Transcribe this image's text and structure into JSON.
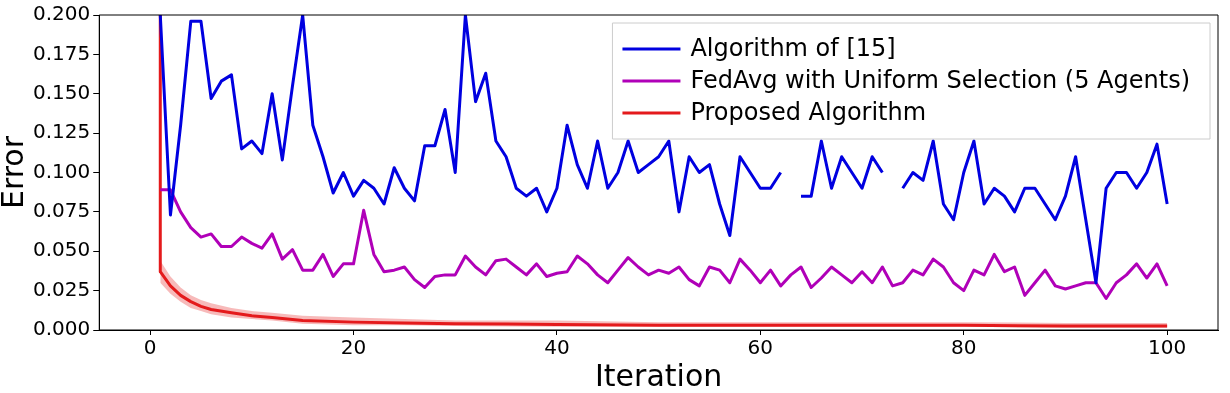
{
  "chart_data": {
    "type": "line",
    "xlabel": "Iteration",
    "ylabel": "Error",
    "xlim": [
      -5,
      105
    ],
    "xticks": [
      0,
      20,
      40,
      60,
      80,
      100
    ],
    "ylim": [
      0,
      0.2
    ],
    "yticks": [
      {
        "value": 0,
        "label": "0.000"
      },
      {
        "value": 0.025,
        "label": "0.025"
      },
      {
        "value": 0.05,
        "label": "0.050"
      },
      {
        "value": 0.075,
        "label": "0.075"
      },
      {
        "value": 0.1,
        "label": "0.100"
      },
      {
        "value": 0.125,
        "label": "0.125"
      },
      {
        "value": 0.15,
        "label": "0.150"
      },
      {
        "value": 0.175,
        "label": "0.175"
      },
      {
        "value": 0.2,
        "label": "0.200"
      }
    ],
    "legend": "top right",
    "grid": false,
    "marker": "none",
    "line_style": "solid",
    "series": [
      {
        "name": "Algorithm of [15]",
        "color": "#0000e0",
        "x": [
          1,
          2,
          3,
          4,
          5,
          6,
          7,
          8,
          9,
          10,
          11,
          12,
          13,
          14,
          15,
          16,
          17,
          18,
          19,
          20,
          21,
          22,
          23,
          24,
          25,
          26,
          27,
          28,
          29,
          30,
          31,
          32,
          33,
          34,
          35,
          36,
          37,
          38,
          39,
          40,
          41,
          42,
          43,
          44,
          45,
          46,
          47,
          48,
          49,
          50,
          51,
          52,
          53,
          54,
          55,
          56,
          57,
          58,
          59,
          60,
          61,
          62,
          63,
          64,
          65,
          66,
          67,
          68,
          69,
          70,
          71,
          72,
          73,
          74,
          75,
          76,
          77,
          78,
          79,
          80,
          81,
          82,
          83,
          84,
          85,
          86,
          87,
          88,
          89,
          90,
          91,
          92,
          93,
          94,
          95,
          96,
          97,
          98,
          99,
          100
        ],
        "values": [
          0.2,
          0.073,
          0.13,
          0.196,
          0.196,
          0.147,
          0.158,
          0.162,
          0.115,
          0.12,
          0.112,
          0.15,
          0.108,
          0.155,
          0.2,
          0.13,
          0.11,
          0.087,
          0.1,
          0.085,
          0.095,
          0.09,
          0.08,
          0.103,
          0.09,
          0.082,
          0.117,
          0.117,
          0.14,
          0.1,
          0.2,
          0.145,
          0.163,
          0.12,
          0.11,
          0.09,
          0.085,
          0.09,
          0.075,
          0.09,
          0.13,
          0.105,
          0.09,
          0.12,
          0.09,
          0.1,
          0.12,
          0.1,
          0.105,
          0.11,
          0.12,
          0.075,
          0.11,
          0.1,
          0.105,
          0.08,
          0.06,
          0.11,
          0.1,
          0.09,
          0.09,
          0.1,
          null,
          0.085,
          0.085,
          0.12,
          0.09,
          0.11,
          0.1,
          0.09,
          0.11,
          0.1,
          null,
          0.09,
          0.1,
          0.095,
          0.12,
          0.08,
          0.07,
          0.1,
          0.12,
          0.08,
          0.09,
          0.085,
          0.075,
          0.09,
          0.09,
          0.08,
          0.07,
          0.085,
          0.11,
          0.07,
          0.03,
          0.09,
          0.1,
          0.1,
          0.09,
          0.1,
          0.118,
          0.08
        ]
      },
      {
        "name": "FedAvg with Uniform Selection (5 Agents)",
        "color": "#b000b8",
        "x": [
          1,
          2,
          3,
          4,
          5,
          6,
          7,
          8,
          9,
          10,
          11,
          12,
          13,
          14,
          15,
          16,
          17,
          18,
          19,
          20,
          21,
          22,
          23,
          24,
          25,
          26,
          27,
          28,
          29,
          30,
          31,
          32,
          33,
          34,
          35,
          36,
          37,
          38,
          39,
          40,
          41,
          42,
          43,
          44,
          45,
          46,
          47,
          48,
          49,
          50,
          51,
          52,
          53,
          54,
          55,
          56,
          57,
          58,
          59,
          60,
          61,
          62,
          63,
          64,
          65,
          66,
          67,
          68,
          69,
          70,
          71,
          72,
          73,
          74,
          75,
          76,
          77,
          78,
          79,
          80,
          81,
          82,
          83,
          84,
          85,
          86,
          87,
          88,
          89,
          90,
          91,
          92,
          93,
          94,
          95,
          96,
          97,
          98,
          99,
          100
        ],
        "values": [
          0.089,
          0.089,
          0.075,
          0.065,
          0.059,
          0.061,
          0.053,
          0.053,
          0.059,
          0.055,
          0.052,
          0.061,
          0.045,
          0.051,
          0.038,
          0.038,
          0.048,
          0.034,
          0.042,
          0.042,
          0.076,
          0.048,
          0.037,
          0.038,
          0.04,
          0.032,
          0.027,
          0.034,
          0.035,
          0.035,
          0.047,
          0.04,
          0.035,
          0.044,
          0.045,
          0.04,
          0.035,
          0.042,
          0.034,
          0.036,
          0.037,
          0.047,
          0.042,
          0.035,
          0.03,
          0.038,
          0.046,
          0.04,
          0.035,
          0.038,
          0.036,
          0.04,
          0.032,
          0.028,
          0.04,
          0.038,
          0.03,
          0.045,
          0.038,
          0.03,
          0.038,
          0.028,
          0.035,
          0.04,
          0.027,
          0.033,
          0.04,
          0.035,
          0.03,
          0.037,
          0.03,
          0.04,
          0.028,
          0.03,
          0.038,
          0.035,
          0.045,
          0.04,
          0.03,
          0.025,
          0.038,
          0.035,
          0.048,
          0.037,
          0.04,
          0.022,
          0.03,
          0.038,
          0.028,
          0.026,
          0.028,
          0.03,
          0.03,
          0.02,
          0.03,
          0.035,
          0.042,
          0.033,
          0.042,
          0.028
        ]
      },
      {
        "name": "Proposed Algorithm",
        "color": "#e41a1c",
        "x": [
          1,
          1,
          2,
          3,
          4,
          5,
          6,
          8,
          10,
          12,
          15,
          20,
          25,
          30,
          40,
          50,
          60,
          70,
          80,
          90,
          100
        ],
        "values": [
          0.2,
          0.037,
          0.028,
          0.022,
          0.018,
          0.015,
          0.013,
          0.011,
          0.009,
          0.008,
          0.006,
          0.005,
          0.0045,
          0.004,
          0.0035,
          0.003,
          0.003,
          0.003,
          0.003,
          0.0025,
          0.0025
        ],
        "lower": [
          null,
          0.03,
          0.023,
          0.018,
          0.014,
          0.012,
          0.01,
          0.008,
          0.007,
          0.006,
          0.004,
          0.003,
          0.003,
          0.0025,
          0.002,
          0.002,
          0.002,
          0.002,
          0.002,
          0.0015,
          0.0015
        ],
        "upper": [
          null,
          0.044,
          0.034,
          0.027,
          0.022,
          0.019,
          0.017,
          0.014,
          0.012,
          0.011,
          0.009,
          0.008,
          0.007,
          0.006,
          0.006,
          0.005,
          0.005,
          0.005,
          0.005,
          0.0045,
          0.0045
        ]
      }
    ]
  }
}
